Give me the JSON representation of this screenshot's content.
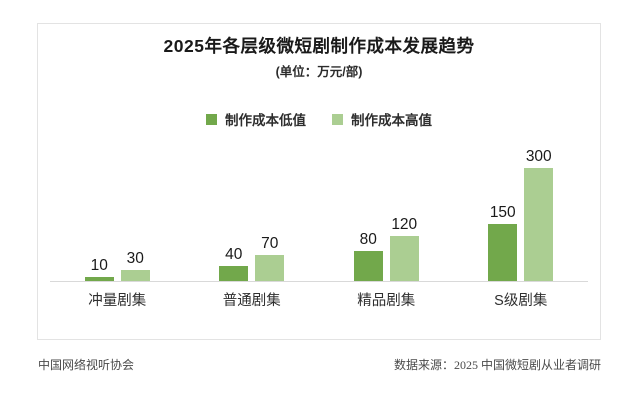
{
  "card": {
    "title": "2025年各层级微短剧制作成本发展趋势",
    "subtitle": "(单位：万元/部)"
  },
  "chart_data": {
    "type": "bar",
    "title": "2025年各层级微短剧制作成本发展趋势",
    "unit_label": "(单位：万元/部)",
    "categories": [
      "冲量剧集",
      "普通剧集",
      "精品剧集",
      "S级剧集"
    ],
    "series": [
      {
        "name": "制作成本低值",
        "color": "#72a84b",
        "values": [
          10,
          40,
          80,
          150
        ]
      },
      {
        "name": "制作成本高值",
        "color": "#abce92",
        "values": [
          30,
          70,
          120,
          300
        ]
      }
    ],
    "ylim": [
      0,
      300
    ],
    "grid": false,
    "legend_position": "top",
    "value_labels": true,
    "axis_line_color": "#d9d9d9"
  },
  "footer": {
    "left": "中国网络视听协会",
    "right": "数据来源：2025 中国微短剧从业者调研"
  }
}
